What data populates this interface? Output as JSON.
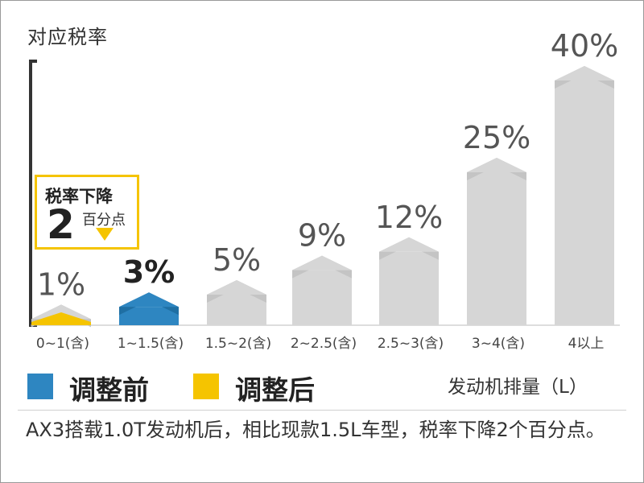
{
  "chart_data": {
    "type": "bar",
    "ylabel": "对应税率",
    "xlabel": "发动机排量（L）",
    "categories": [
      "0~1(含)",
      "1~1.5(含)",
      "1.5~2(含)",
      "2~2.5(含)",
      "2.5~3(含)",
      "3~4(含)",
      "4以上"
    ],
    "series": [
      {
        "name": "",
        "values": [
          1,
          3,
          5,
          9,
          12,
          25,
          40
        ],
        "labels": [
          "1%",
          "3%",
          "5%",
          "9%",
          "12%",
          "25%",
          "40%"
        ]
      }
    ],
    "ylim": [
      0,
      40
    ],
    "grid": false,
    "legend": "bottom-left",
    "highlight": {
      "before_index": 1,
      "after_index": 0,
      "before_color": "#2e86c1",
      "after_color": "#f5c400"
    }
  },
  "legend": {
    "before": {
      "label": "调整前",
      "color": "#2e86c1"
    },
    "after": {
      "label": "调整后",
      "color": "#f5c400"
    }
  },
  "callout": {
    "title": "税率下降",
    "number": "2",
    "unit": "百分点",
    "color": "#f5c400"
  },
  "caption": "AX3搭载1.0T发动机后，相比现款1.5L车型，税率下降2个百分点。"
}
